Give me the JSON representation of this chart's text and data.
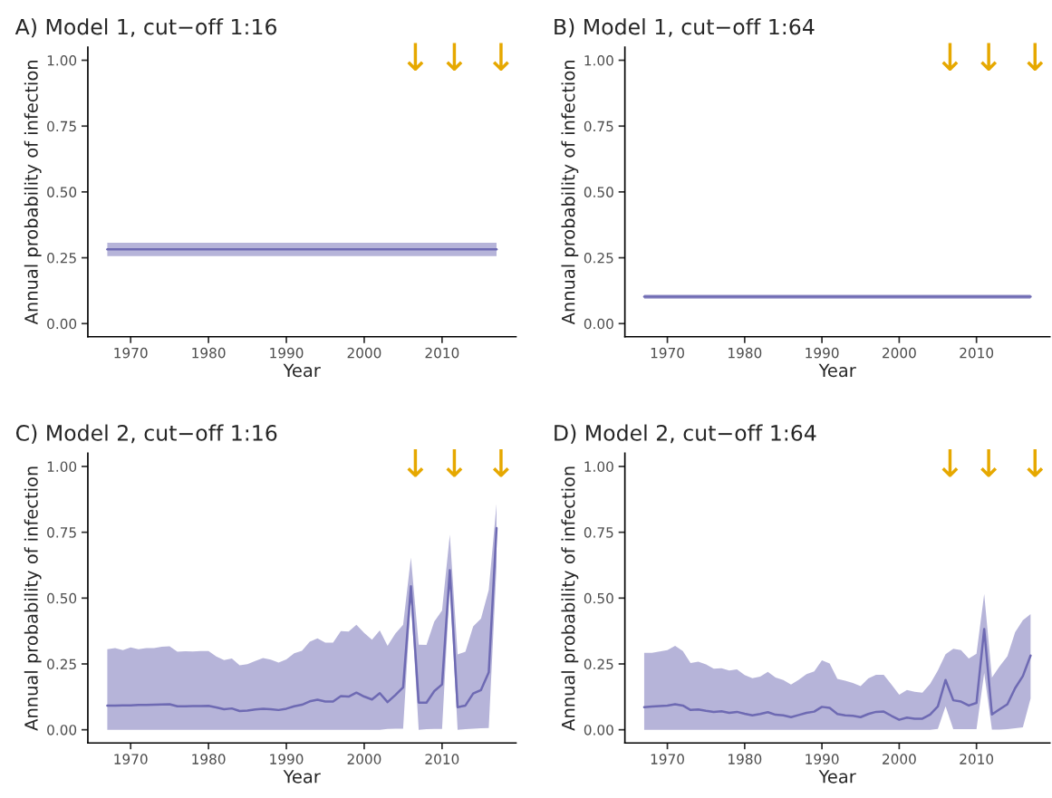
{
  "chart_data": [
    {
      "type": "line",
      "title": "A) Model 1, cut−off 1:16",
      "xlabel": "Year",
      "ylabel": "Annual probability of infection",
      "xlim": [
        1964.5,
        2019.5
      ],
      "xticks": [
        1970,
        1980,
        1990,
        2000,
        2010
      ],
      "ylim": [
        -0.05,
        1.05
      ],
      "yticks": [
        {
          "value": 0,
          "label": "0.00"
        },
        {
          "value": 0.25,
          "label": "0.25"
        },
        {
          "value": 0.5,
          "label": "0.50"
        },
        {
          "value": 0.75,
          "label": "0.75"
        },
        {
          "value": 1,
          "label": "1.00"
        }
      ],
      "grid": false,
      "annotations": [
        "↓",
        "↓",
        "↓"
      ],
      "series": [
        {
          "color": "#6e6ab3",
          "x": [
            1967,
            2017
          ],
          "values": [
            0.282,
            0.282
          ],
          "lower": [
            0.256,
            0.256
          ],
          "upper": [
            0.307,
            0.307
          ]
        }
      ]
    },
    {
      "type": "line",
      "title": "B) Model 1, cut−off 1:64",
      "xlabel": "Year",
      "ylabel": "Annual probability of infection",
      "xlim": [
        1964.5,
        2019.5
      ],
      "xticks": [
        1970,
        1980,
        1990,
        2000,
        2010
      ],
      "ylim": [
        -0.05,
        1.05
      ],
      "yticks": [
        {
          "value": 0,
          "label": "0.00"
        },
        {
          "value": 0.25,
          "label": "0.25"
        },
        {
          "value": 0.5,
          "label": "0.50"
        },
        {
          "value": 0.75,
          "label": "0.75"
        },
        {
          "value": 1,
          "label": "1.00"
        }
      ],
      "grid": false,
      "annotations": [
        "↓",
        "↓",
        "↓"
      ],
      "series": [
        {
          "color": "#6e6ab3",
          "x": [
            1967,
            2017
          ],
          "values": [
            0.102,
            0.102
          ],
          "lower": [
            0.094,
            0.094
          ],
          "upper": [
            0.11,
            0.11
          ]
        }
      ]
    },
    {
      "type": "line",
      "title": "C) Model 2, cut−off 1:16",
      "xlabel": "Year",
      "ylabel": "Annual probability of infection",
      "xlim": [
        1964.5,
        2019.5
      ],
      "xticks": [
        1970,
        1980,
        1990,
        2000,
        2010
      ],
      "ylim": [
        -0.05,
        1.05
      ],
      "yticks": [
        {
          "value": 0,
          "label": "0.00"
        },
        {
          "value": 0.25,
          "label": "0.25"
        },
        {
          "value": 0.5,
          "label": "0.50"
        },
        {
          "value": 0.75,
          "label": "0.75"
        },
        {
          "value": 1,
          "label": "1.00"
        }
      ],
      "grid": false,
      "annotations": [
        "↓",
        "↓",
        "↓"
      ],
      "series": [
        {
          "color": "#6e6ab3",
          "x": [
            1967,
            1968,
            1969,
            1970,
            1971,
            1972,
            1973,
            1974,
            1975,
            1976,
            1977,
            1978,
            1979,
            1980,
            1981,
            1982,
            1983,
            1984,
            1985,
            1986,
            1987,
            1988,
            1989,
            1990,
            1991,
            1992,
            1993,
            1994,
            1995,
            1996,
            1997,
            1998,
            1999,
            2000,
            2001,
            2002,
            2003,
            2004,
            2005,
            2006,
            2007,
            2008,
            2009,
            2010,
            2011,
            2012,
            2013,
            2014,
            2015,
            2016,
            2017
          ],
          "values": [
            0.092,
            0.092,
            0.093,
            0.093,
            0.094,
            0.094,
            0.095,
            0.096,
            0.097,
            0.089,
            0.089,
            0.09,
            0.09,
            0.091,
            0.085,
            0.078,
            0.081,
            0.071,
            0.073,
            0.077,
            0.08,
            0.078,
            0.075,
            0.08,
            0.089,
            0.095,
            0.108,
            0.114,
            0.107,
            0.107,
            0.128,
            0.126,
            0.141,
            0.126,
            0.115,
            0.139,
            0.105,
            0.132,
            0.161,
            0.545,
            0.103,
            0.103,
            0.147,
            0.172,
            0.606,
            0.086,
            0.092,
            0.138,
            0.151,
            0.218,
            0.766
          ],
          "lower": [
            0,
            0,
            0,
            0,
            0,
            0,
            0,
            0,
            0,
            0,
            0,
            0,
            0,
            0,
            0,
            0,
            0,
            0,
            0,
            0,
            0,
            0,
            0,
            0,
            0,
            0,
            0,
            0,
            0,
            0,
            0,
            0,
            0,
            0,
            0,
            0,
            0.003,
            0.004,
            0.004,
            0.5,
            0,
            0.002,
            0.003,
            0.003,
            0.55,
            0,
            0.002,
            0.004,
            0.006,
            0.007,
            0.62
          ],
          "upper": [
            0.306,
            0.31,
            0.302,
            0.313,
            0.306,
            0.31,
            0.31,
            0.315,
            0.317,
            0.296,
            0.298,
            0.297,
            0.299,
            0.299,
            0.278,
            0.265,
            0.271,
            0.245,
            0.249,
            0.261,
            0.272,
            0.266,
            0.255,
            0.267,
            0.29,
            0.3,
            0.334,
            0.347,
            0.331,
            0.331,
            0.375,
            0.373,
            0.399,
            0.368,
            0.342,
            0.377,
            0.319,
            0.365,
            0.399,
            0.654,
            0.323,
            0.322,
            0.411,
            0.453,
            0.741,
            0.286,
            0.296,
            0.393,
            0.422,
            0.531,
            0.858
          ]
        }
      ]
    },
    {
      "type": "line",
      "title": "D) Model 2, cut−off 1:64",
      "xlabel": "Year",
      "ylabel": "Annual probability of infection",
      "xlim": [
        1964.5,
        2019.5
      ],
      "xticks": [
        1970,
        1980,
        1990,
        2000,
        2010
      ],
      "ylim": [
        -0.05,
        1.05
      ],
      "yticks": [
        {
          "value": 0,
          "label": "0.00"
        },
        {
          "value": 0.25,
          "label": "0.25"
        },
        {
          "value": 0.5,
          "label": "0.50"
        },
        {
          "value": 0.75,
          "label": "0.75"
        },
        {
          "value": 1,
          "label": "1.00"
        }
      ],
      "grid": false,
      "annotations": [
        "↓",
        "↓",
        "↓"
      ],
      "series": [
        {
          "color": "#6e6ab3",
          "x": [
            1967,
            1968,
            1969,
            1970,
            1971,
            1972,
            1973,
            1974,
            1975,
            1976,
            1977,
            1978,
            1979,
            1980,
            1981,
            1982,
            1983,
            1984,
            1985,
            1986,
            1987,
            1988,
            1989,
            1990,
            1991,
            1992,
            1993,
            1994,
            1995,
            1996,
            1997,
            1998,
            1999,
            2000,
            2001,
            2002,
            2003,
            2004,
            2005,
            2006,
            2007,
            2008,
            2009,
            2010,
            2011,
            2012,
            2013,
            2014,
            2015,
            2016,
            2017
          ],
          "values": [
            0.086,
            0.088,
            0.09,
            0.092,
            0.097,
            0.092,
            0.075,
            0.077,
            0.072,
            0.068,
            0.07,
            0.064,
            0.068,
            0.061,
            0.055,
            0.06,
            0.067,
            0.057,
            0.055,
            0.048,
            0.056,
            0.064,
            0.069,
            0.087,
            0.083,
            0.06,
            0.055,
            0.053,
            0.048,
            0.06,
            0.068,
            0.069,
            0.053,
            0.038,
            0.046,
            0.042,
            0.042,
            0.058,
            0.089,
            0.189,
            0.112,
            0.107,
            0.092,
            0.102,
            0.382,
            0.058,
            0.078,
            0.097,
            0.158,
            0.204,
            0.282
          ],
          "lower": [
            0,
            0,
            0,
            0,
            0,
            0,
            0,
            0,
            0,
            0,
            0,
            0,
            0,
            0,
            0,
            0,
            0,
            0,
            0,
            0,
            0,
            0,
            0,
            0,
            0,
            0,
            0,
            0,
            0,
            0,
            0,
            0,
            0,
            0,
            0,
            0,
            0,
            0,
            0.003,
            0.089,
            0.002,
            0.002,
            0.002,
            0.002,
            0.216,
            0.001,
            0.001,
            0.002,
            0.006,
            0.009,
            0.118
          ],
          "upper": [
            0.292,
            0.292,
            0.297,
            0.302,
            0.319,
            0.299,
            0.253,
            0.259,
            0.248,
            0.232,
            0.234,
            0.225,
            0.229,
            0.208,
            0.196,
            0.202,
            0.22,
            0.198,
            0.189,
            0.172,
            0.19,
            0.211,
            0.222,
            0.264,
            0.252,
            0.193,
            0.186,
            0.178,
            0.166,
            0.195,
            0.209,
            0.209,
            0.172,
            0.133,
            0.151,
            0.144,
            0.141,
            0.174,
            0.225,
            0.287,
            0.308,
            0.302,
            0.271,
            0.289,
            0.516,
            0.198,
            0.241,
            0.279,
            0.37,
            0.416,
            0.439
          ]
        }
      ]
    }
  ]
}
